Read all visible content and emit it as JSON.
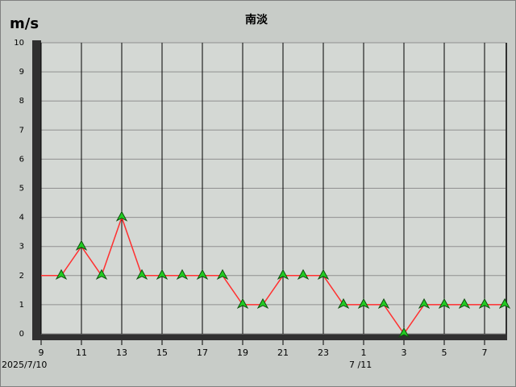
{
  "chart_data": {
    "type": "line",
    "title": "南淡",
    "y_label": "m/s",
    "categories": [
      "9",
      null,
      "11",
      null,
      "13",
      null,
      "15",
      null,
      "17",
      null,
      "19",
      null,
      "21",
      null,
      "23",
      null,
      "1",
      null,
      "3",
      null,
      "5",
      null,
      "7",
      null
    ],
    "annotations": [
      "2025/7/10",
      "7 /11"
    ],
    "series": [
      {
        "color": "#ff3030",
        "marker_color": "#22cc22",
        "values": [
          2,
          2,
          3,
          2,
          4,
          2,
          2,
          2,
          2,
          2,
          1,
          1,
          2,
          2,
          2,
          1,
          1,
          1,
          0,
          1,
          1,
          1,
          1,
          1
        ]
      }
    ],
    "ylim": [
      0,
      10
    ],
    "yticks": [
      0,
      1,
      2,
      3,
      4,
      5,
      6,
      7,
      8,
      9,
      10
    ],
    "grid": true
  }
}
